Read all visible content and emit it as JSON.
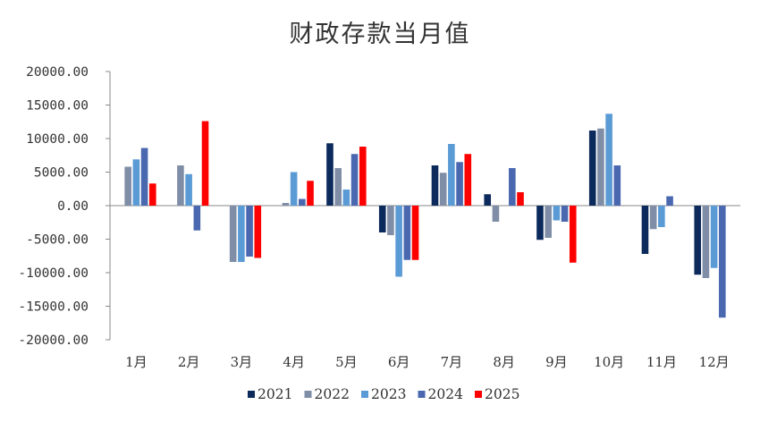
{
  "chart_data": {
    "type": "bar",
    "title": "财政存款当月值",
    "xlabel": "",
    "ylabel": "",
    "ylim": [
      -20000,
      20000
    ],
    "yticks": [
      "20000.00",
      "15000.00",
      "10000.00",
      "5000.00",
      "0.00",
      "-5000.00",
      "-10000.00",
      "-15000.00",
      "-20000.00"
    ],
    "categories": [
      "1月",
      "2月",
      "3月",
      "4月",
      "5月",
      "6月",
      "7月",
      "8月",
      "9月",
      "10月",
      "11月",
      "12月"
    ],
    "legend_position": "bottom",
    "grid": false,
    "series": [
      {
        "name": "2021",
        "color": "#0c2a5c",
        "values": [
          null,
          null,
          null,
          null,
          9300,
          -4000,
          6000,
          1700,
          -5100,
          11200,
          -7200,
          -10300
        ]
      },
      {
        "name": "2022",
        "color": "#7f8ea6",
        "values": [
          5800,
          6000,
          -8400,
          400,
          5600,
          -4400,
          4900,
          -2400,
          -4800,
          11500,
          -3500,
          -10800
        ]
      },
      {
        "name": "2023",
        "color": "#5b9bd5",
        "values": [
          6900,
          4700,
          -8400,
          5000,
          2400,
          -10600,
          9200,
          null,
          -2200,
          13700,
          -3200,
          -9300
        ]
      },
      {
        "name": "2024",
        "color": "#4a68b0",
        "values": [
          8600,
          -3700,
          -7600,
          1000,
          7700,
          -8100,
          6500,
          5600,
          -2400,
          6000,
          1400,
          -16700
        ]
      },
      {
        "name": "2025",
        "color": "#ff0000",
        "values": [
          3300,
          12600,
          -7800,
          3700,
          8800,
          -8100,
          7700,
          2000,
          -8500,
          null,
          null,
          null
        ]
      }
    ]
  }
}
